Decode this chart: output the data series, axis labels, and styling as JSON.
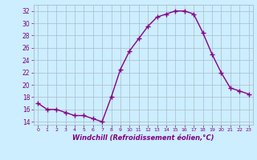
{
  "x": [
    0,
    1,
    2,
    3,
    4,
    5,
    6,
    7,
    8,
    9,
    10,
    11,
    12,
    13,
    14,
    15,
    16,
    17,
    18,
    19,
    20,
    21,
    22,
    23
  ],
  "y": [
    17.0,
    16.0,
    16.0,
    15.5,
    15.0,
    15.0,
    14.5,
    14.0,
    18.0,
    22.5,
    25.5,
    27.5,
    29.5,
    31.0,
    31.5,
    32.0,
    32.0,
    31.5,
    28.5,
    25.0,
    22.0,
    19.5,
    19.0,
    18.5
  ],
  "ylim": [
    13.5,
    33.0
  ],
  "xlim": [
    -0.5,
    23.5
  ],
  "yticks": [
    14,
    16,
    18,
    20,
    22,
    24,
    26,
    28,
    30,
    32
  ],
  "xticks": [
    0,
    1,
    2,
    3,
    4,
    5,
    6,
    7,
    8,
    9,
    10,
    11,
    12,
    13,
    14,
    15,
    16,
    17,
    18,
    19,
    20,
    21,
    22,
    23
  ],
  "xlabel": "Windchill (Refroidissement éolien,°C)",
  "line_color": "#880088",
  "marker": "+",
  "bg_color": "#cceeff",
  "grid_color": "#aabbcc",
  "tick_color": "#800080",
  "label_color": "#800080",
  "figsize": [
    3.2,
    2.0
  ],
  "dpi": 100
}
